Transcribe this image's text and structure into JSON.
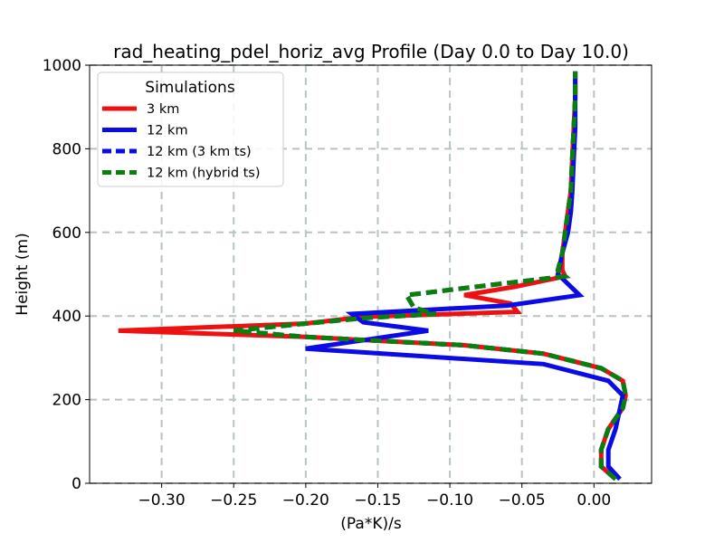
{
  "chart_data": {
    "type": "line",
    "title": "rad_heating_pdel_horiz_avg Profile (Day 0.0 to Day 10.0)",
    "xlabel": "(Pa*K)/s",
    "ylabel": "Height (m)",
    "xlim": [
      -0.35,
      0.04
    ],
    "ylim": [
      0,
      1000
    ],
    "xticks": [
      -0.3,
      -0.25,
      -0.2,
      -0.15,
      -0.1,
      -0.05,
      0.0
    ],
    "xtick_labels": [
      "−0.30",
      "−0.25",
      "−0.20",
      "−0.15",
      "−0.10",
      "−0.05",
      "0.00"
    ],
    "yticks": [
      0,
      200,
      400,
      600,
      800,
      1000
    ],
    "ytick_labels": [
      "0",
      "200",
      "400",
      "600",
      "800",
      "1000"
    ],
    "grid": true,
    "legend": {
      "title": "Simulations",
      "placement": "top-left"
    },
    "series": [
      {
        "name": "3 km",
        "color": "#ee1111",
        "style": "solid",
        "x": [
          0.015,
          0.005,
          0.005,
          0.01,
          0.02,
          0.022,
          0.02,
          0.005,
          -0.035,
          -0.09,
          -0.2,
          -0.33,
          -0.2,
          -0.16,
          -0.053,
          -0.058,
          -0.09,
          -0.055,
          -0.02,
          -0.022,
          -0.022,
          -0.02,
          -0.018,
          -0.016,
          -0.015,
          -0.014,
          -0.013,
          -0.013
        ],
        "y": [
          10,
          40,
          80,
          130,
          180,
          210,
          245,
          275,
          310,
          330,
          350,
          365,
          382,
          398,
          410,
          430,
          450,
          470,
          495,
          510,
          550,
          600,
          650,
          700,
          780,
          850,
          920,
          985
        ]
      },
      {
        "name": "12 km",
        "color": "#0b0be8",
        "style": "solid",
        "x": [
          0.018,
          0.01,
          0.01,
          0.015,
          0.02,
          0.01,
          -0.035,
          -0.2,
          -0.115,
          -0.16,
          -0.168,
          -0.06,
          -0.01,
          -0.025,
          -0.022,
          -0.018,
          -0.016,
          -0.015,
          -0.014,
          -0.013,
          -0.013
        ],
        "y": [
          10,
          40,
          80,
          130,
          210,
          245,
          285,
          322,
          365,
          385,
          405,
          425,
          450,
          500,
          550,
          600,
          650,
          700,
          780,
          850,
          985
        ]
      },
      {
        "name": "12 km (3 km ts)",
        "color": "#0b0be8",
        "style": "dashed",
        "x": [
          0.015,
          0.005,
          0.005,
          0.01,
          0.02,
          0.022,
          0.02,
          0.005,
          -0.035,
          -0.09,
          -0.2,
          -0.25,
          -0.2,
          -0.16,
          -0.11,
          -0.125,
          -0.13,
          -0.07,
          -0.02,
          -0.025,
          -0.022,
          -0.02,
          -0.018,
          -0.016,
          -0.015,
          -0.014,
          -0.013,
          -0.013
        ],
        "y": [
          10,
          40,
          80,
          130,
          180,
          210,
          245,
          275,
          310,
          330,
          350,
          365,
          382,
          395,
          405,
          420,
          450,
          475,
          495,
          510,
          550,
          600,
          650,
          700,
          780,
          850,
          920,
          985
        ]
      },
      {
        "name": "12 km (hybrid ts)",
        "color": "#0a7f0a",
        "style": "dashed",
        "x": [
          0.015,
          0.005,
          0.005,
          0.01,
          0.02,
          0.022,
          0.02,
          0.005,
          -0.035,
          -0.09,
          -0.2,
          -0.25,
          -0.2,
          -0.16,
          -0.11,
          -0.125,
          -0.13,
          -0.07,
          -0.02,
          -0.025,
          -0.022,
          -0.02,
          -0.018,
          -0.016,
          -0.015,
          -0.014,
          -0.013,
          -0.013
        ],
        "y": [
          10,
          40,
          80,
          130,
          180,
          210,
          245,
          275,
          310,
          330,
          350,
          365,
          382,
          395,
          405,
          420,
          450,
          475,
          495,
          510,
          550,
          600,
          650,
          700,
          780,
          850,
          920,
          985
        ]
      }
    ]
  }
}
